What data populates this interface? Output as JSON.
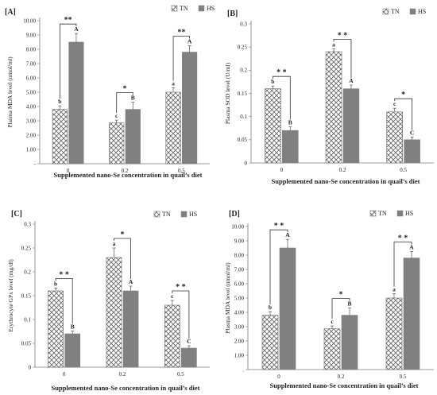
{
  "colors": {
    "hs_bar": "#808080",
    "tn_hatch": "#666666",
    "axis": "#7a7a7a",
    "text": "#222222"
  },
  "chart_data": [
    {
      "type": "bar",
      "panel": "[A]",
      "categories": [
        "0",
        "0.2",
        "0.5"
      ],
      "series": [
        {
          "name": "TN",
          "values": [
            3.8,
            2.85,
            5.0
          ],
          "errors": [
            0.25,
            0.2,
            0.3
          ]
        },
        {
          "name": "HS",
          "values": [
            8.5,
            3.8,
            7.8
          ],
          "errors": [
            0.6,
            0.5,
            0.45
          ]
        }
      ],
      "letters": [
        [
          "b",
          "A"
        ],
        [
          "c",
          "B"
        ],
        [
          "a",
          "A"
        ]
      ],
      "stars": [
        "**",
        "*",
        "**"
      ],
      "xlabel": "Supplemented nano-Se concentration in quail’s diet",
      "ylabel": "Plasma MDA level (nmol/ml)",
      "ylim": [
        0,
        10
      ],
      "yticks": [
        "-",
        "1.00",
        "2.00",
        "3.00",
        "4.00",
        "5.00",
        "6.00",
        "7.00",
        "8.00",
        "9.00",
        "10.00"
      ],
      "grid": false,
      "legend": "top-right"
    },
    {
      "type": "bar",
      "panel": "[B]",
      "categories": [
        "0",
        "0.2",
        "0.5"
      ],
      "series": [
        {
          "name": "TN",
          "values": [
            0.16,
            0.24,
            0.11
          ],
          "errors": [
            0.006,
            0.006,
            0.008
          ]
        },
        {
          "name": "HS",
          "values": [
            0.07,
            0.16,
            0.05
          ],
          "errors": [
            0.008,
            0.008,
            0.006
          ]
        }
      ],
      "letters": [
        [
          "b",
          "B"
        ],
        [
          "a",
          "A"
        ],
        [
          "c",
          "C"
        ]
      ],
      "stars": [
        "* *",
        "* *",
        "*"
      ],
      "xlabel": "Supplemented nano-Se concentration in quail’s diet",
      "ylabel": "Plasma SOD level (U/ml)",
      "ylim": [
        0,
        0.3
      ],
      "yticks": [
        "0",
        "0.05",
        "0.1",
        "0.15",
        "0.2",
        "0.25",
        "0.3"
      ],
      "grid": false,
      "legend": "top-right"
    },
    {
      "type": "bar",
      "panel": "[C]",
      "categories": [
        "0",
        "0.2",
        "0.5"
      ],
      "series": [
        {
          "name": "TN",
          "values": [
            0.16,
            0.23,
            0.13
          ],
          "errors": [
            0.006,
            0.02,
            0.01
          ]
        },
        {
          "name": "HS",
          "values": [
            0.07,
            0.16,
            0.04
          ],
          "errors": [
            0.006,
            0.01,
            0.005
          ]
        }
      ],
      "letters": [
        [
          "b",
          "B"
        ],
        [
          "a",
          "A"
        ],
        [
          "c",
          "C"
        ]
      ],
      "stars": [
        "* *",
        "*",
        "* *"
      ],
      "xlabel": "Supplemented nano-Se concentration in quail’s diet",
      "ylabel": "Erythrocyte GPx level (mg/dl)",
      "ylim": [
        0,
        0.3
      ],
      "yticks": [
        "0",
        "0.05",
        "0.1",
        "0.15",
        "0.2",
        "0.25",
        "0.3"
      ],
      "grid": false,
      "legend": "top-right"
    },
    {
      "type": "bar",
      "panel": "[D]",
      "categories": [
        "0",
        "0.2",
        "0.5"
      ],
      "series": [
        {
          "name": "TN",
          "values": [
            3.8,
            2.85,
            5.0
          ],
          "errors": [
            0.25,
            0.2,
            0.3
          ]
        },
        {
          "name": "HS",
          "values": [
            8.5,
            3.8,
            7.8
          ],
          "errors": [
            0.6,
            0.5,
            0.45
          ]
        }
      ],
      "letters": [
        [
          "b",
          "A"
        ],
        [
          "c",
          "B"
        ],
        [
          "a",
          "A"
        ]
      ],
      "stars": [
        "* *",
        "*",
        "* *"
      ],
      "xlabel": "Supplemented nano-Se concentration in quail’s diet",
      "ylabel": "Plasma MDA level (nmol/ml)",
      "ylim": [
        0,
        10
      ],
      "yticks": [
        ".",
        "1.00",
        "2.00",
        "3.00",
        "4.00",
        "5.00",
        "6.00",
        "7.00",
        "8.00",
        "9.00",
        "10.00"
      ],
      "grid": false,
      "legend": "top-center"
    }
  ]
}
